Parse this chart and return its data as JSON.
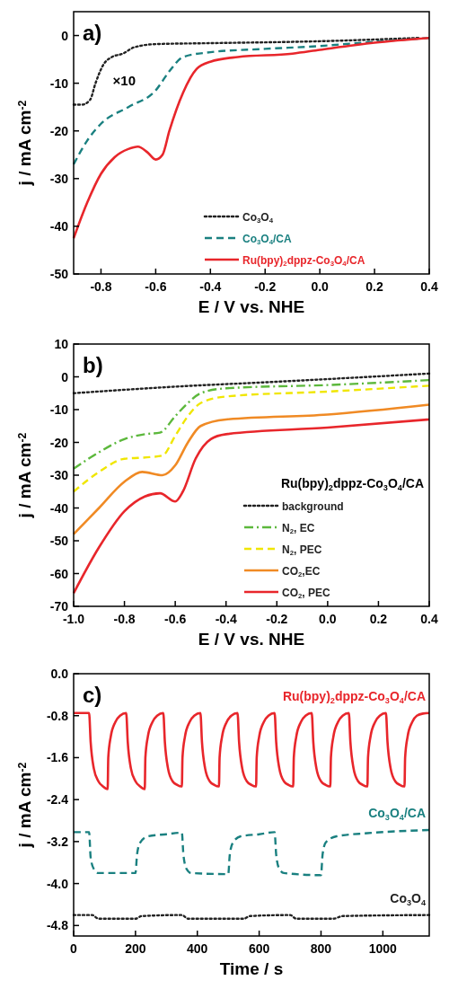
{
  "chart_data": [
    {
      "type": "line",
      "title": "a)",
      "xlabel": "E / V vs. NHE",
      "ylabel": "j / mA cm$^{-2}$",
      "xlim": [
        -0.9,
        0.4
      ],
      "ylim": [
        -50,
        5
      ],
      "xticks": [
        {
          "value": -0.8,
          "label": "-0.8"
        },
        {
          "value": -0.6,
          "label": "-0.6"
        },
        {
          "value": -0.4,
          "label": "-0.4"
        },
        {
          "value": -0.2,
          "label": "-0.2"
        },
        {
          "value": 0,
          "label": "0.0"
        },
        {
          "value": 0.2,
          "label": "0.2"
        },
        {
          "value": 0.4,
          "label": "0.4"
        }
      ],
      "yticks": [
        0,
        -10,
        -20,
        -30,
        -40,
        -50
      ],
      "legend": "bottom right",
      "annotations": [
        "×10"
      ],
      "series": [
        {
          "name": "Co$_{3}$O$_{4}$",
          "color": "#222222",
          "line_style": "dotted",
          "x": [
            -0.9,
            -0.87,
            -0.84,
            -0.82,
            -0.79,
            -0.76,
            -0.72,
            -0.68,
            -0.6,
            -0.4,
            0,
            0.36
          ],
          "values": [
            -14.5,
            -14.5,
            -13.5,
            -10,
            -6,
            -4.5,
            -3.8,
            -2.5,
            -1.8,
            -1.6,
            -1.2,
            -0.5
          ]
        },
        {
          "name": "Co$_{3}$O$_{4}$/CA",
          "color": "#1a8080",
          "line_style": "dashed",
          "x": [
            -0.9,
            -0.85,
            -0.8,
            -0.7,
            -0.6,
            -0.55,
            -0.5,
            -0.4,
            -0.2,
            0,
            0.2,
            0.4
          ],
          "values": [
            -27,
            -22,
            -18.5,
            -15,
            -11.5,
            -7.5,
            -4.5,
            -3.5,
            -2.8,
            -2.2,
            -1.3,
            -0.5
          ]
        },
        {
          "name": "Ru(bpy)$_{2}$dppz-Co$_{3}$O$_{4}$/CA",
          "color": "#e8262b",
          "line_style": "solid",
          "x": [
            -0.9,
            -0.85,
            -0.8,
            -0.75,
            -0.7,
            -0.665,
            -0.63,
            -0.6,
            -0.575,
            -0.55,
            -0.5,
            -0.45,
            -0.4,
            -0.3,
            -0.1,
            0,
            0.2,
            0.4
          ],
          "values": [
            -42.5,
            -35,
            -29,
            -25.5,
            -23.8,
            -23.3,
            -24.5,
            -26,
            -25,
            -20,
            -12,
            -7,
            -5.5,
            -4.5,
            -3.8,
            -3,
            -1.5,
            -0.5
          ]
        }
      ]
    },
    {
      "type": "line",
      "title": "b)",
      "xlabel": "E / V vs. NHE",
      "ylabel": "j / mA cm$^{-2}$",
      "xlim": [
        -1.0,
        0.4
      ],
      "ylim": [
        -70,
        10
      ],
      "xticks": [
        {
          "value": -1,
          "label": "-1.0"
        },
        {
          "value": -0.8,
          "label": "-0.8"
        },
        {
          "value": -0.6,
          "label": "-0.6"
        },
        {
          "value": -0.4,
          "label": "-0.4"
        },
        {
          "value": -0.2,
          "label": "-0.2"
        },
        {
          "value": 0,
          "label": "0.0"
        },
        {
          "value": 0.2,
          "label": "0.2"
        },
        {
          "value": 0.4,
          "label": "0.4"
        }
      ],
      "yticks": [
        10,
        0,
        -10,
        -20,
        -30,
        -40,
        -50,
        -60,
        -70
      ],
      "legend": "bottom right",
      "legend_title": "Ru(bpy)$_{2}$dppz-Co$_{3}$O$_{4}$/CA",
      "series": [
        {
          "name": "background",
          "color": "#222222",
          "line_style": "dotted",
          "x": [
            -1,
            -0.6,
            -0.2,
            0.4
          ],
          "values": [
            -5,
            -3,
            -1.5,
            1
          ]
        },
        {
          "name": "N$_{2}$, EC",
          "color": "#5cb83c",
          "line_style": "dashdot",
          "x": [
            -1,
            -0.9,
            -0.8,
            -0.72,
            -0.66,
            -0.6,
            -0.55,
            -0.5,
            -0.4,
            0,
            0.4
          ],
          "values": [
            -28,
            -23,
            -19,
            -17.5,
            -17,
            -12,
            -8,
            -5,
            -3.5,
            -2.5,
            -1
          ]
        },
        {
          "name": "N$_{2}$, PEC",
          "color": "#f0e600",
          "line_style": "dashed",
          "x": [
            -1,
            -0.9,
            -0.8,
            -0.7,
            -0.65,
            -0.6,
            -0.55,
            -0.5,
            -0.4,
            0,
            0.4
          ],
          "values": [
            -35,
            -29,
            -25,
            -24.5,
            -24,
            -18,
            -12,
            -8,
            -6,
            -4.5,
            -2.7
          ]
        },
        {
          "name": "CO$_{2}$,EC",
          "color": "#f08a24",
          "line_style": "solid",
          "x": [
            -1,
            -0.9,
            -0.8,
            -0.73,
            -0.65,
            -0.6,
            -0.55,
            -0.5,
            -0.4,
            0,
            0.4
          ],
          "values": [
            -48,
            -40,
            -32,
            -29,
            -30,
            -27,
            -20,
            -15,
            -13,
            -11.5,
            -8.5
          ]
        },
        {
          "name": "CO$_{2}$, PEC",
          "color": "#e8262b",
          "line_style": "solid",
          "x": [
            -1,
            -0.9,
            -0.8,
            -0.72,
            -0.66,
            -0.6,
            -0.57,
            -0.52,
            -0.46,
            -0.4,
            0,
            0.4
          ],
          "values": [
            -66,
            -52,
            -41,
            -36.5,
            -35.5,
            -38,
            -35,
            -25,
            -19,
            -17.5,
            -15.5,
            -13
          ]
        }
      ]
    },
    {
      "type": "line",
      "title": "c)",
      "xlabel": "Time / s",
      "ylabel": "j / mA cm$^{-2}$",
      "xlim": [
        0,
        1150
      ],
      "ylim": [
        -5,
        0
      ],
      "xticks": [
        0,
        200,
        400,
        600,
        800,
        1000
      ],
      "yticks": [
        {
          "value": 0,
          "label": "0.0"
        },
        {
          "value": -0.8,
          "label": "-0.8"
        },
        {
          "value": -1.6,
          "label": "-1.6"
        },
        {
          "value": -2.4,
          "label": "-2.4"
        },
        {
          "value": -3.2,
          "label": "-3.2"
        },
        {
          "value": -4,
          "label": "-4.0"
        },
        {
          "value": -4.8,
          "label": "-4.8"
        }
      ],
      "series": [
        {
          "name": "Ru(bpy)$_{2}$dppz-Co$_{3}$O$_{4}$/CA",
          "color": "#e8262b",
          "line_style": "solid",
          "x": [
            0,
            50,
            55,
            65,
            80,
            95,
            110,
            112,
            120,
            135,
            150,
            170,
            175,
            185,
            200,
            215,
            230,
            232,
            240,
            255,
            270,
            290,
            295,
            305,
            320,
            335,
            350,
            352,
            360,
            375,
            390,
            410,
            415,
            425,
            440,
            455,
            470,
            472,
            480,
            495,
            510,
            530,
            535,
            545,
            560,
            575,
            590,
            592,
            600,
            615,
            630,
            650,
            655,
            665,
            680,
            695,
            710,
            712,
            720,
            735,
            750,
            770,
            775,
            785,
            800,
            815,
            830,
            832,
            840,
            855,
            870,
            890,
            895,
            905,
            920,
            935,
            950,
            952,
            960,
            975,
            990,
            1010,
            1015,
            1025,
            1040,
            1055,
            1070,
            1072,
            1080,
            1095,
            1110,
            1130,
            1150
          ],
          "values": [
            -0.75,
            -0.75,
            -1.3,
            -1.8,
            -2.05,
            -2.15,
            -2.2,
            -1.6,
            -1.2,
            -0.92,
            -0.8,
            -0.75,
            -1.3,
            -1.8,
            -2.05,
            -2.15,
            -2.2,
            -1.6,
            -1.2,
            -0.92,
            -0.8,
            -0.75,
            -1.3,
            -1.8,
            -2.05,
            -2.12,
            -2.15,
            -1.6,
            -1.2,
            -0.92,
            -0.8,
            -0.75,
            -1.3,
            -1.8,
            -2.05,
            -2.12,
            -2.15,
            -1.6,
            -1.2,
            -0.92,
            -0.8,
            -0.75,
            -1.3,
            -1.8,
            -2.05,
            -2.12,
            -2.15,
            -1.6,
            -1.2,
            -0.92,
            -0.8,
            -0.75,
            -1.3,
            -1.8,
            -2.05,
            -2.12,
            -2.15,
            -1.6,
            -1.2,
            -0.92,
            -0.8,
            -0.75,
            -1.3,
            -1.8,
            -2.05,
            -2.12,
            -2.15,
            -1.6,
            -1.2,
            -0.92,
            -0.8,
            -0.75,
            -1.3,
            -1.8,
            -2.05,
            -2.12,
            -2.15,
            -1.6,
            -1.2,
            -0.92,
            -0.8,
            -0.75,
            -1.3,
            -1.8,
            -2.05,
            -2.12,
            -2.15,
            -1.6,
            -1.2,
            -0.92,
            -0.8,
            -0.76,
            -0.75
          ]
        },
        {
          "name": "Co$_{3}$O$_{4}$/CA",
          "color": "#1a8080",
          "line_style": "dashed",
          "x": [
            0,
            50,
            55,
            65,
            80,
            200,
            205,
            215,
            240,
            300,
            350,
            355,
            365,
            380,
            500,
            505,
            515,
            540,
            600,
            650,
            655,
            665,
            680,
            800,
            805,
            815,
            850,
            950,
            1150
          ],
          "values": [
            -3.02,
            -3.02,
            -3.5,
            -3.72,
            -3.8,
            -3.8,
            -3.45,
            -3.22,
            -3.1,
            -3.06,
            -3.03,
            -3.45,
            -3.72,
            -3.8,
            -3.82,
            -3.45,
            -3.22,
            -3.1,
            -3.06,
            -3.02,
            -3.45,
            -3.72,
            -3.8,
            -3.84,
            -3.45,
            -3.22,
            -3.1,
            -3.04,
            -2.98
          ]
        },
        {
          "name": "Co$_{3}$O$_{4}$",
          "color": "#222222",
          "line_style": "dotted",
          "x": [
            0,
            60,
            80,
            200,
            220,
            350,
            370,
            550,
            570,
            700,
            720,
            840,
            870,
            1150
          ],
          "values": [
            -4.6,
            -4.6,
            -4.67,
            -4.67,
            -4.62,
            -4.6,
            -4.67,
            -4.67,
            -4.62,
            -4.6,
            -4.67,
            -4.67,
            -4.62,
            -4.6
          ]
        }
      ]
    }
  ]
}
